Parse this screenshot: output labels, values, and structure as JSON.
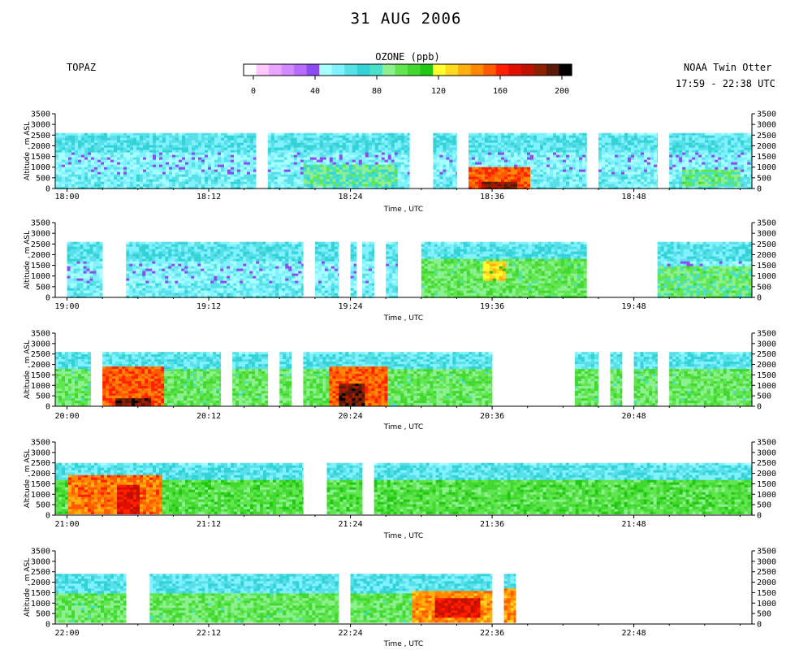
{
  "title": "31 AUG 2006",
  "site": "TOPAZ",
  "platform": "NOAA Twin Otter",
  "time_range": "17:59 - 22:38 UTC",
  "colorbar": {
    "label": "OZONE (ppb)",
    "tick_labels": [
      "0",
      "40",
      "80",
      "120",
      "160",
      "200"
    ],
    "range": [
      0,
      200
    ],
    "colors": [
      "#ffffff",
      "#ffc8ff",
      "#eaa6ff",
      "#d38aff",
      "#b76cff",
      "#8a4cf0",
      "#a8ffff",
      "#80f2ff",
      "#58e0e8",
      "#33d2d6",
      "#48e0c8",
      "#8cf090",
      "#62e650",
      "#42d830",
      "#20c810",
      "#ffff30",
      "#ffd820",
      "#ffb010",
      "#ff8800",
      "#ff5a00",
      "#ff2000",
      "#e01000",
      "#c01000",
      "#8a2000",
      "#5a1808",
      "#000000"
    ]
  },
  "chart_data": [
    {
      "type": "heatmap",
      "xlabel": "Time , UTC",
      "ylabel": "Altitude , m ASL",
      "x_tick_labels": [
        "18:00",
        "18:12",
        "18:24",
        "18:36",
        "18:48"
      ],
      "y_tick_labels": [
        "0",
        "500",
        "1000",
        "1500",
        "2000",
        "2500",
        "3000",
        "3500"
      ],
      "ylim": [
        0,
        3500
      ],
      "time_range": [
        "17:59",
        "18:58"
      ],
      "data_segments": [
        [
          "17:59",
          "18:16"
        ],
        [
          "18:17",
          "18:29"
        ],
        [
          "18:31",
          "18:33"
        ],
        [
          "18:34",
          "18:44"
        ],
        [
          "18:45",
          "18:50"
        ],
        [
          "18:51",
          "18:58"
        ]
      ],
      "top_altitude_m": 2600,
      "bands": [
        {
          "from": 0,
          "to": 700,
          "ppb": 60
        },
        {
          "from": 700,
          "to": 1700,
          "ppb": 55
        },
        {
          "from": 1700,
          "to": 2600,
          "ppb": 65
        }
      ],
      "features": [
        {
          "t0": "18:20",
          "t1": "18:28",
          "a0": 200,
          "a1": 1200,
          "ppb": 85
        },
        {
          "t0": "18:34",
          "t1": "18:39",
          "a0": 0,
          "a1": 1100,
          "ppb": 150
        },
        {
          "t0": "18:35",
          "t1": "18:38",
          "a0": 0,
          "a1": 400,
          "ppb": 180
        },
        {
          "t0": "18:52",
          "t1": "18:57",
          "a0": 200,
          "a1": 1000,
          "ppb": 90
        }
      ]
    },
    {
      "type": "heatmap",
      "xlabel": "Time , UTC",
      "ylabel": "Altitude , m ASL",
      "x_tick_labels": [
        "19:00",
        "19:12",
        "19:24",
        "19:36",
        "19:48"
      ],
      "y_tick_labels": [
        "0",
        "500",
        "1000",
        "1500",
        "2000",
        "2500",
        "3000",
        "3500"
      ],
      "ylim": [
        0,
        3500
      ],
      "time_range": [
        "18:59",
        "19:58"
      ],
      "data_segments": [
        [
          "19:00",
          "19:03"
        ],
        [
          "19:05",
          "19:20"
        ],
        [
          "19:21",
          "19:23"
        ],
        [
          "19:24",
          "19:24"
        ],
        [
          "19:25",
          "19:26"
        ],
        [
          "19:27",
          "19:28"
        ],
        [
          "19:30",
          "19:44"
        ],
        [
          "19:50",
          "19:58"
        ]
      ],
      "top_altitude_m": 2600,
      "bands": [
        {
          "from": 0,
          "to": 700,
          "ppb": 60
        },
        {
          "from": 700,
          "to": 1700,
          "ppb": 55
        },
        {
          "from": 1700,
          "to": 2600,
          "ppb": 65
        }
      ],
      "features": [
        {
          "t0": "19:30",
          "t1": "19:44",
          "a0": 0,
          "a1": 1900,
          "ppb": 95
        },
        {
          "t0": "19:35",
          "t1": "19:37",
          "a0": 800,
          "a1": 1800,
          "ppb": 125
        },
        {
          "t0": "19:50",
          "t1": "19:58",
          "a0": 0,
          "a1": 1500,
          "ppb": 90
        }
      ]
    },
    {
      "type": "heatmap",
      "xlabel": "Time , UTC",
      "ylabel": "Altitude , m ASL",
      "x_tick_labels": [
        "20:00",
        "20:12",
        "20:24",
        "20:36",
        "20:48"
      ],
      "y_tick_labels": [
        "0",
        "500",
        "1000",
        "1500",
        "2000",
        "2500",
        "3000",
        "3500"
      ],
      "ylim": [
        0,
        3500
      ],
      "time_range": [
        "19:59",
        "20:58"
      ],
      "data_segments": [
        [
          "19:59",
          "20:02"
        ],
        [
          "20:03",
          "20:13"
        ],
        [
          "20:14",
          "20:17"
        ],
        [
          "20:18",
          "20:19"
        ],
        [
          "20:20",
          "20:36"
        ],
        [
          "20:43",
          "20:45"
        ],
        [
          "20:46",
          "20:47"
        ],
        [
          "20:48",
          "20:49"
        ],
        [
          "20:49",
          "20:50"
        ],
        [
          "20:51",
          "20:52"
        ],
        [
          "20:52",
          "20:58"
        ]
      ],
      "top_altitude_m": 2600,
      "bands": [
        {
          "from": 0,
          "to": 1900,
          "ppb": 95
        },
        {
          "from": 1900,
          "to": 2600,
          "ppb": 65
        }
      ],
      "features": [
        {
          "t0": "20:03",
          "t1": "20:08",
          "a0": 0,
          "a1": 2000,
          "ppb": 150
        },
        {
          "t0": "20:04",
          "t1": "20:07",
          "a0": 0,
          "a1": 500,
          "ppb": 185
        },
        {
          "t0": "20:22",
          "t1": "20:27",
          "a0": 0,
          "a1": 2000,
          "ppb": 150
        },
        {
          "t0": "20:23",
          "t1": "20:25",
          "a0": 0,
          "a1": 1200,
          "ppb": 185
        }
      ]
    },
    {
      "type": "heatmap",
      "xlabel": "Time , UTC",
      "ylabel": "Altitude , m ASL",
      "x_tick_labels": [
        "21:00",
        "21:12",
        "21:24",
        "21:36",
        "21:48"
      ],
      "y_tick_labels": [
        "0",
        "500",
        "1000",
        "1500",
        "2000",
        "2500",
        "3000",
        "3500"
      ],
      "ylim": [
        0,
        3500
      ],
      "time_range": [
        "20:59",
        "21:58"
      ],
      "data_segments": [
        [
          "20:59",
          "21:20"
        ],
        [
          "21:22",
          "21:25"
        ],
        [
          "21:26",
          "21:58"
        ]
      ],
      "top_altitude_m": 2500,
      "bands": [
        {
          "from": 0,
          "to": 1800,
          "ppb": 100
        },
        {
          "from": 1800,
          "to": 2500,
          "ppb": 65
        }
      ],
      "features": [
        {
          "t0": "21:00",
          "t1": "21:08",
          "a0": 0,
          "a1": 2000,
          "ppb": 145
        },
        {
          "t0": "21:04",
          "t1": "21:06",
          "a0": 0,
          "a1": 1500,
          "ppb": 165
        }
      ]
    },
    {
      "type": "heatmap",
      "xlabel": "Time , UTC",
      "ylabel": "Altitude , m ASL",
      "x_tick_labels": [
        "22:00",
        "22:12",
        "22:24",
        "22:36",
        "22:48"
      ],
      "y_tick_labels": [
        "0",
        "500",
        "1000",
        "1500",
        "2000",
        "2500",
        "3000",
        "3500"
      ],
      "ylim": [
        0,
        3500
      ],
      "time_range": [
        "21:59",
        "22:58"
      ],
      "data_segments": [
        [
          "21:59",
          "22:05"
        ],
        [
          "22:07",
          "22:23"
        ],
        [
          "22:24",
          "22:36"
        ],
        [
          "22:37",
          "22:38"
        ]
      ],
      "top_altitude_m": 2400,
      "bands": [
        {
          "from": 0,
          "to": 1500,
          "ppb": 95
        },
        {
          "from": 1500,
          "to": 2400,
          "ppb": 65
        }
      ],
      "features": [
        {
          "t0": "22:29",
          "t1": "22:36",
          "a0": 0,
          "a1": 1600,
          "ppb": 140
        },
        {
          "t0": "22:31",
          "t1": "22:35",
          "a0": 300,
          "a1": 1300,
          "ppb": 165
        },
        {
          "t0": "22:37",
          "t1": "22:38",
          "a0": 0,
          "a1": 1700,
          "ppb": 140
        }
      ]
    }
  ]
}
